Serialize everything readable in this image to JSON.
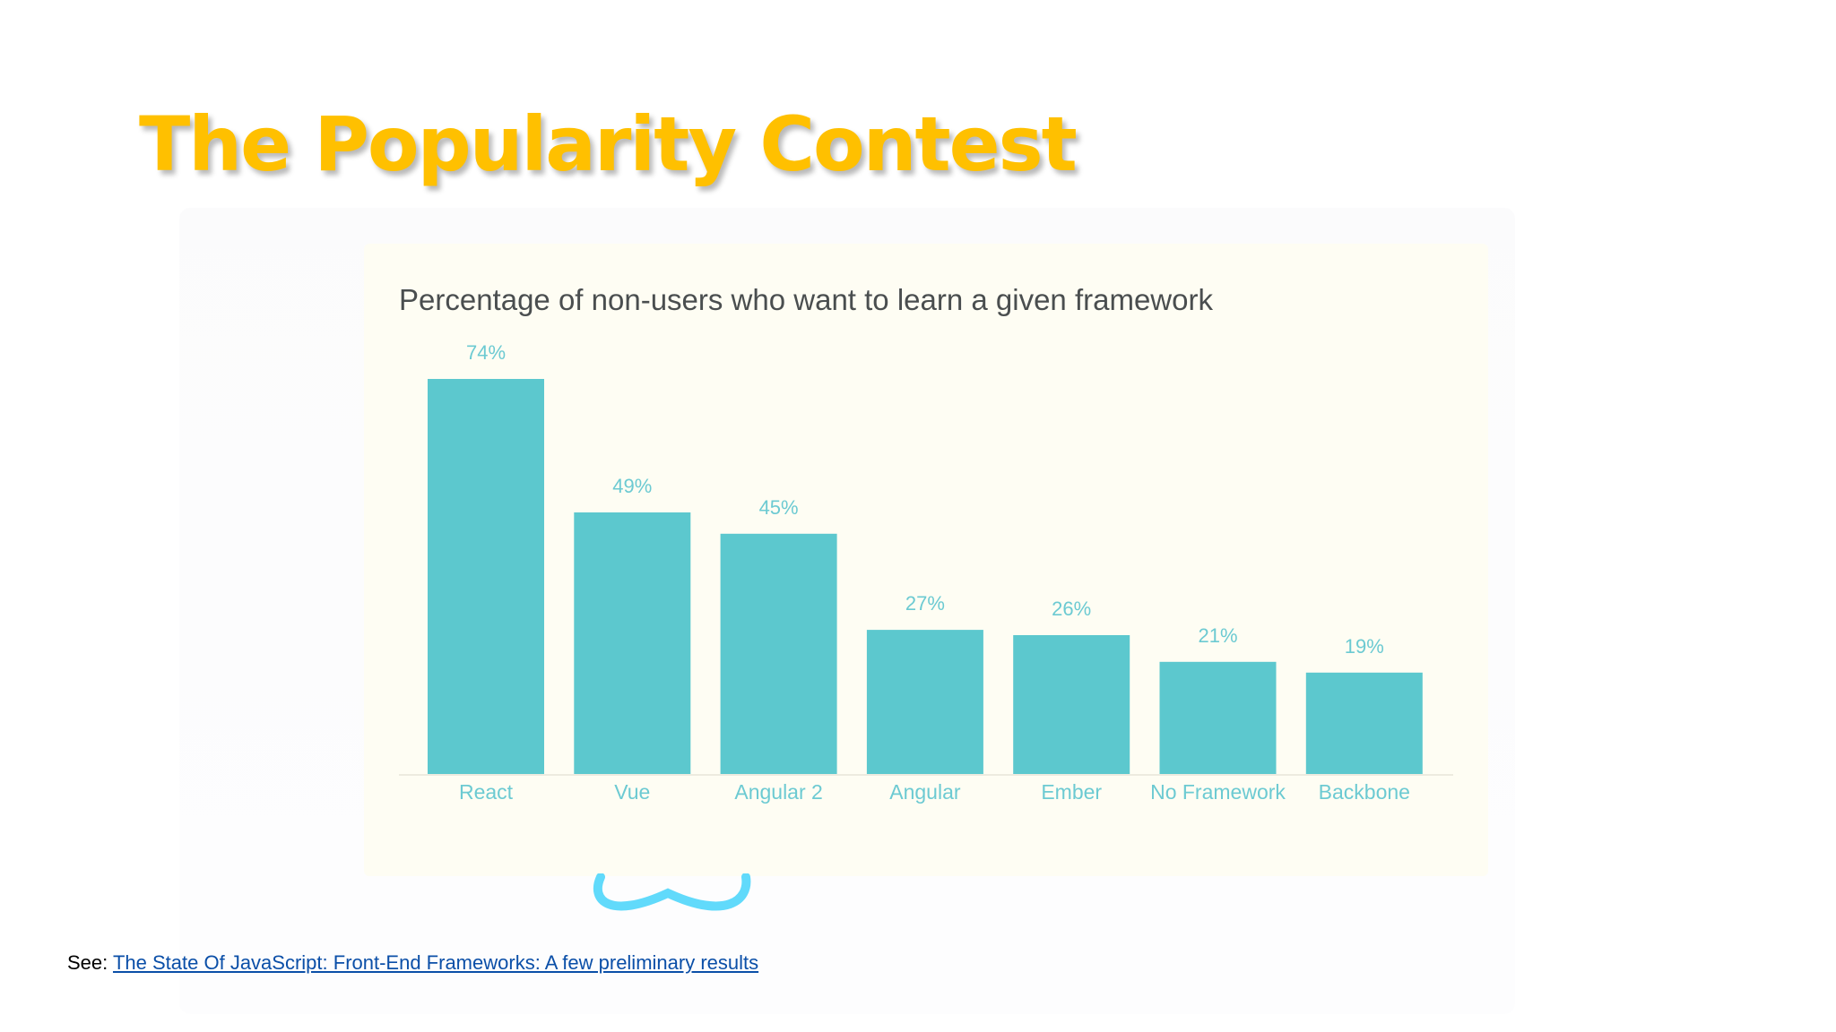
{
  "slide": {
    "title": "The Popularity Contest",
    "source_prefix": "See: ",
    "source_link_text": "The State Of JavaScript: Front-End Frameworks: A few preliminary results"
  },
  "colors": {
    "title": "#FFC000",
    "bar": "#5CC8CE",
    "label": "#6CCAD2",
    "panel_background": "#FEFDF3",
    "link": "#0B4FA8",
    "logo": "#61DAFB"
  },
  "icons": {
    "partial_logo": "react-logo-icon"
  },
  "chart_data": {
    "type": "bar",
    "title": "Percentage of non-users who want to learn a given framework",
    "categories": [
      "React",
      "Vue",
      "Angular 2",
      "Angular",
      "Ember",
      "No Framework",
      "Backbone"
    ],
    "values": [
      74,
      49,
      45,
      27,
      26,
      21,
      19
    ],
    "value_labels": [
      "74%",
      "49%",
      "45%",
      "27%",
      "26%",
      "21%",
      "19%"
    ],
    "unit": "%",
    "ylim": [
      0,
      80
    ],
    "grid": false,
    "legend": "none"
  }
}
